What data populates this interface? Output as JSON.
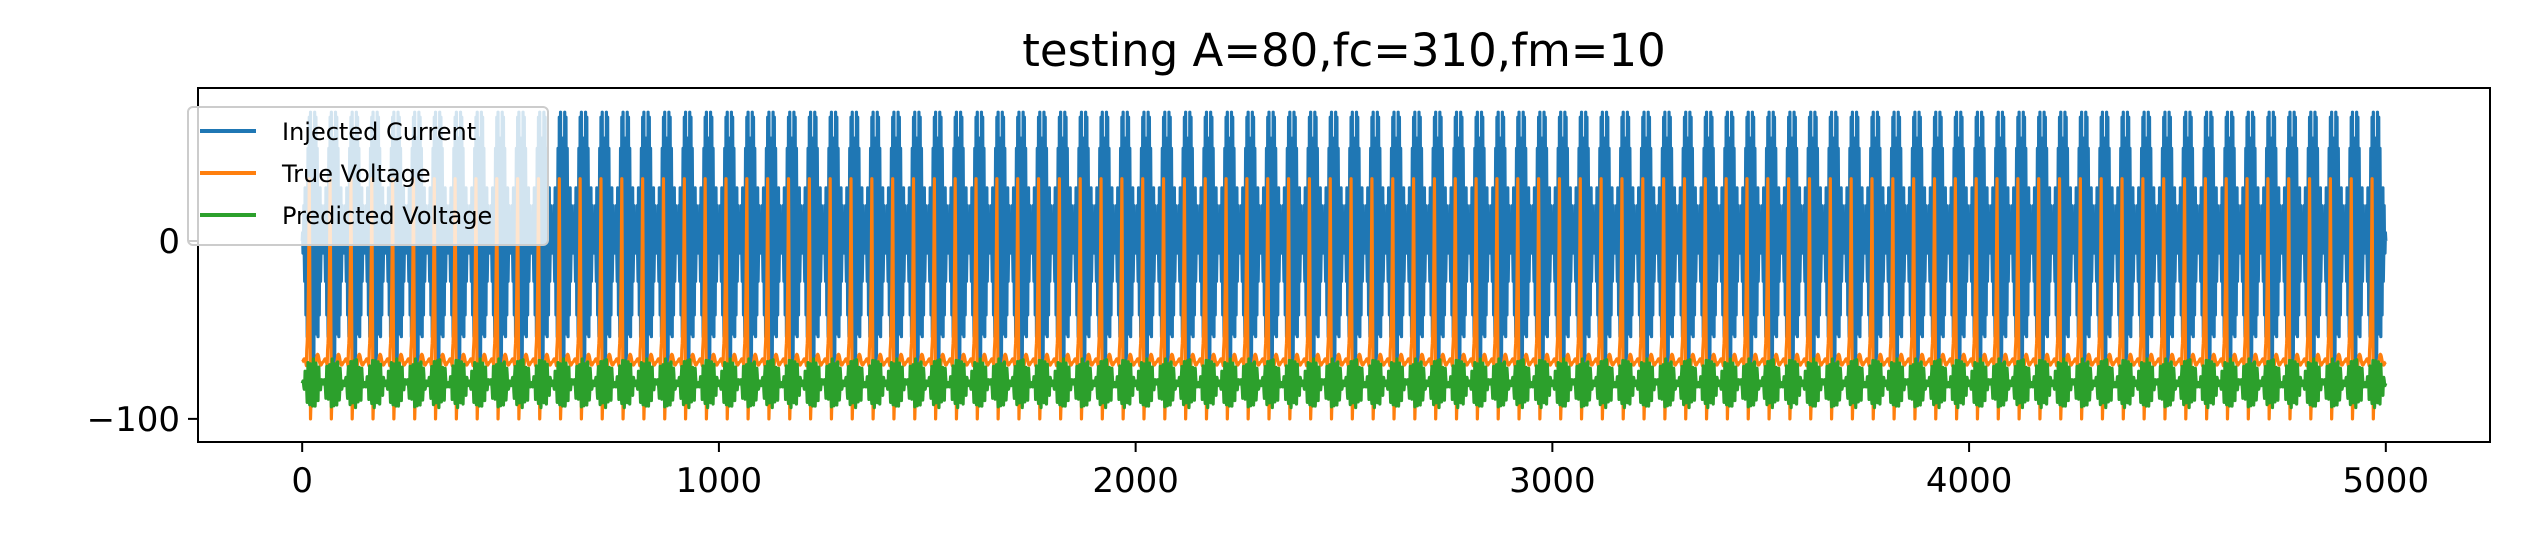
{
  "chart_data": {
    "type": "line",
    "title": "testing A=80,fc=310,fm=10",
    "xlabel": "",
    "ylabel": "",
    "xlim": [
      -250,
      5250
    ],
    "ylim": [
      -113,
      86
    ],
    "xticks": [
      0,
      1000,
      2000,
      3000,
      4000,
      5000
    ],
    "xtick_labels": [
      "0",
      "1000",
      "2000",
      "3000",
      "4000",
      "5000"
    ],
    "yticks": [
      0,
      -100
    ],
    "ytick_labels": [
      "0",
      "−100"
    ],
    "grid": false,
    "legend_position": "top-left",
    "x": {
      "start": 0,
      "end": 5000,
      "count": 5001
    },
    "series": [
      {
        "name": "Injected Current",
        "color": "#1f77b4",
        "signal": "A*sin(2*pi*fm*t)*sin(2*pi*fc*t), t = x/1000",
        "amplitude": 80,
        "carrier_frequency": 310,
        "modulation_frequency": 10,
        "baseline": 0
      },
      {
        "name": "True Voltage",
        "color": "#ff7f0e",
        "signal": "spiking membrane voltage driven by injected current",
        "resting_value": -68,
        "spike_peak": 35,
        "spike_trough": -100,
        "range": [
          -100,
          35
        ]
      },
      {
        "name": "Predicted Voltage",
        "color": "#2ca02c",
        "signal": "model prediction, oscillation around rest",
        "baseline": -82,
        "oscillation_range": [
          -90,
          -65
        ]
      }
    ]
  }
}
